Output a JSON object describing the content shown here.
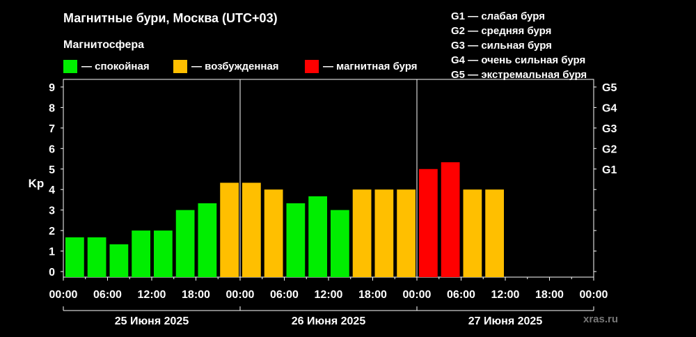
{
  "header": {
    "title": "Магнитные бури, Москва (UTC+03)",
    "subtitle": "Магнитосфера"
  },
  "legend": [
    {
      "color": "#00ee00",
      "label": "— спокойная"
    },
    {
      "color": "#ffbf00",
      "label": "— возбужденная"
    },
    {
      "color": "#ff0000",
      "label": "— магнитная буря"
    }
  ],
  "g_legend": [
    "G1 — слабая буря",
    "G2 — средняя буря",
    "G3 — сильная буря",
    "G4 — очень сильная буря",
    "G5 — экстремальная буря"
  ],
  "watermark": "xras.ru",
  "chart_data": {
    "type": "bar",
    "ylabel": "Kp",
    "ylim": [
      0,
      9.5
    ],
    "yticks": [
      "0",
      "1",
      "2",
      "3",
      "4",
      "5",
      "6",
      "7",
      "8",
      "9"
    ],
    "g_ticks": [
      {
        "label": "G1",
        "kp": 5
      },
      {
        "label": "G2",
        "kp": 6
      },
      {
        "label": "G3",
        "kp": 7
      },
      {
        "label": "G4",
        "kp": 8
      },
      {
        "label": "G5",
        "kp": 9
      }
    ],
    "interval_hours": 3,
    "xticks": [
      "00:00",
      "06:00",
      "12:00",
      "18:00",
      "00:00",
      "06:00",
      "12:00",
      "18:00",
      "00:00",
      "06:00",
      "12:00",
      "18:00",
      "00:00"
    ],
    "days": [
      "25 Июня 2025",
      "26 Июня 2025",
      "27 Июня 2025"
    ],
    "values": [
      1.67,
      1.67,
      1.33,
      2.0,
      2.0,
      3.0,
      3.33,
      4.33,
      4.33,
      4.0,
      3.33,
      3.67,
      3.0,
      4.0,
      4.0,
      4.0,
      5.0,
      5.33,
      4.0,
      4.0
    ],
    "colors": [
      "#00ee00",
      "#00ee00",
      "#00ee00",
      "#00ee00",
      "#00ee00",
      "#00ee00",
      "#00ee00",
      "#ffbf00",
      "#ffbf00",
      "#ffbf00",
      "#00ee00",
      "#00ee00",
      "#00ee00",
      "#ffbf00",
      "#ffbf00",
      "#ffbf00",
      "#ff0000",
      "#ff0000",
      "#ffbf00",
      "#ffbf00"
    ]
  }
}
